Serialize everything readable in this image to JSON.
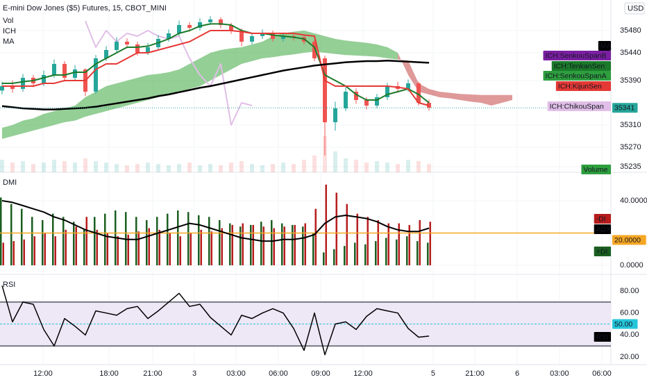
{
  "chart_data": [
    {
      "type": "candlestick",
      "title": "E-mini Dow Jones ($5) Futures, 15, CBOT_MINI",
      "indicators": [
        "Vol",
        "ICH",
        "MA"
      ],
      "currency": "USD",
      "up_color": "#26a69a",
      "down_color": "#ef5350",
      "open": [
        35372,
        35380,
        35375,
        35395,
        35385,
        35400,
        35420,
        35395,
        35410,
        35370,
        35430,
        35445,
        35460,
        35455,
        35440,
        35450,
        35465,
        35475,
        35490,
        35485,
        35495,
        35500,
        35490,
        35480,
        35460,
        35470,
        35475,
        35465,
        35470,
        35468,
        35460,
        35430,
        35315,
        35340,
        35370,
        35355,
        35345,
        35360,
        35380,
        35375,
        35385,
        35350
      ],
      "high": [
        35388,
        35390,
        35402,
        35400,
        35408,
        35428,
        35425,
        35418,
        35412,
        35436,
        35452,
        35468,
        35466,
        35460,
        35458,
        35472,
        35482,
        35498,
        35495,
        35502,
        35506,
        35504,
        35494,
        35484,
        35476,
        35482,
        35480,
        35476,
        35476,
        35472,
        35464,
        35435,
        35352,
        35378,
        35376,
        35360,
        35366,
        35386,
        35388,
        35392,
        35388,
        35356
      ],
      "low": [
        35365,
        35368,
        35370,
        35378,
        35380,
        35395,
        35388,
        35390,
        35362,
        35366,
        35425,
        35440,
        35448,
        35435,
        35436,
        35446,
        35460,
        35470,
        35478,
        35480,
        35490,
        35484,
        35474,
        35452,
        35455,
        35465,
        35460,
        35460,
        35462,
        35455,
        35425,
        35255,
        35300,
        35335,
        35348,
        35338,
        35340,
        35355,
        35368,
        35370,
        35345,
        35336
      ],
      "close": [
        35380,
        35375,
        35395,
        35385,
        35400,
        35420,
        35395,
        35410,
        35370,
        35430,
        35445,
        35460,
        35455,
        35440,
        35450,
        35465,
        35475,
        35490,
        35485,
        35495,
        35500,
        35490,
        35480,
        35460,
        35470,
        35475,
        35465,
        35470,
        35468,
        35460,
        35430,
        35315,
        35340,
        35370,
        35355,
        35345,
        35360,
        35380,
        35375,
        35385,
        35350,
        35341
      ],
      "last_price": 35341,
      "last_price_color": "#26a69a",
      "series": [
        {
          "name": "MA",
          "color": "#000000",
          "values": [
            35344,
            35342,
            35340,
            35339,
            35338,
            35338,
            35339,
            35340,
            35341,
            35343,
            35346,
            35349,
            35352,
            35355,
            35358,
            35362,
            35365,
            35369,
            35373,
            35377,
            35380,
            35384,
            35388,
            35392,
            35396,
            35400,
            35404,
            35408,
            35411,
            35414,
            35417,
            35419,
            35421,
            35423,
            35424,
            35425,
            35425,
            35426,
            35425,
            35424,
            35423,
            35422
          ]
        },
        {
          "name": "ICH:SenkouSpanB",
          "color": "#7b1fa2",
          "values": [
            35285,
            35290,
            35295,
            35300,
            35305,
            35310,
            35315,
            35318,
            35325,
            35330,
            35335,
            35340,
            35345,
            35350,
            35355,
            35360,
            35365,
            35370,
            35375,
            35380,
            35390,
            35400,
            35410,
            35420,
            35425,
            35430,
            35432,
            35435,
            35437,
            35440,
            35442,
            35440,
            35438,
            35436,
            35435,
            35434,
            35433,
            35430,
            35428,
            35426,
            35385,
            35375,
            35370,
            35368,
            35366,
            35365,
            35364,
            35364,
            35364,
            35364
          ]
        },
        {
          "name": "ICH:TenkanSen",
          "color": "#1b7a2a",
          "values": [
            35385,
            35385,
            35388,
            35390,
            35395,
            35400,
            35400,
            35405,
            35405,
            35420,
            35430,
            35440,
            35450,
            35450,
            35452,
            35458,
            35465,
            35475,
            35480,
            35488,
            35492,
            35492,
            35490,
            35480,
            35475,
            35475,
            35472,
            35470,
            35468,
            35465,
            35450,
            35400,
            35390,
            35380,
            35365,
            35355,
            35355,
            35365,
            35370,
            35375,
            35365,
            35350
          ]
        },
        {
          "name": "ICH:SenkouSpanA",
          "color": "#2e9e3e",
          "values": [
            35305,
            35310,
            35318,
            35322,
            35330,
            35335,
            35340,
            35345,
            35360,
            35370,
            35380,
            35385,
            35390,
            35395,
            35400,
            35402,
            35405,
            35410,
            35420,
            35430,
            35440,
            35445,
            35448,
            35450,
            35455,
            35460,
            35470,
            35475,
            35478,
            35480,
            35475,
            35470,
            35465,
            35462,
            35460,
            35458,
            35455,
            35450,
            35440,
            35400,
            35370,
            35365,
            35360,
            35358,
            35355,
            35352,
            35350,
            35345,
            35350,
            35355
          ]
        },
        {
          "name": "ICH:KijunSen",
          "color": "#e53935",
          "values": [
            35380,
            35380,
            35380,
            35380,
            35385,
            35385,
            35390,
            35390,
            35390,
            35410,
            35420,
            35420,
            35430,
            35440,
            35440,
            35445,
            35450,
            35455,
            35460,
            35470,
            35480,
            35480,
            35480,
            35478,
            35475,
            35475,
            35475,
            35475,
            35475,
            35472,
            35470,
            35390,
            35380,
            35380,
            35380,
            35380,
            35380,
            35380,
            35378,
            35375,
            35350,
            35345
          ]
        },
        {
          "name": "ICH:ChikouSpan",
          "color": "#e1bee7",
          "values": [
            null,
            null,
            null,
            null,
            null,
            null,
            null,
            null,
            35497,
            35450,
            35480,
            35460,
            35475,
            35470,
            35480,
            35470,
            35465,
            35470,
            35430,
            35400,
            35380,
            35420,
            35310,
            35350,
            35345,
            null,
            null,
            null,
            null,
            null,
            null,
            null,
            null,
            null,
            null,
            null,
            null,
            null,
            null,
            null,
            null,
            null
          ]
        }
      ],
      "cloud_colors": {
        "up": "rgba(76,175,80,0.6)",
        "down": "rgba(183,28,28,0.45)"
      },
      "volume": {
        "name": "Volume",
        "color": "#2e9e3e",
        "lim": [
          0,
          3000
        ],
        "values": [
          900,
          700,
          800,
          600,
          700,
          900,
          800,
          700,
          1000,
          800,
          700,
          600,
          500,
          600,
          700,
          600,
          500,
          600,
          700,
          500,
          600,
          500,
          700,
          800,
          600,
          500,
          600,
          700,
          600,
          900,
          1200,
          2600,
          1500,
          1000,
          900,
          700,
          800,
          700,
          600,
          900,
          800,
          600
        ]
      },
      "ylim": [
        35225,
        35535
      ],
      "yticks": [
        35480,
        35440,
        35390,
        35310,
        35270,
        35235
      ],
      "xlim": [
        -0.2,
        58.47
      ],
      "xticks": [
        {
          "value": 3.93,
          "label": "12:00"
        },
        {
          "value": 10.27,
          "label": "18:00"
        },
        {
          "value": 14.47,
          "label": "21:00"
        },
        {
          "value": 18.47,
          "label": "3"
        },
        {
          "value": 22.47,
          "label": "03:00"
        },
        {
          "value": 26.53,
          "label": "06:00"
        },
        {
          "value": 30.6,
          "label": "09:00"
        },
        {
          "value": 34.67,
          "label": "12:00"
        },
        {
          "value": 41.4,
          "label": "5"
        },
        {
          "value": 45.4,
          "label": "21:00"
        },
        {
          "value": 49.47,
          "label": "6"
        },
        {
          "value": 53.53,
          "label": "03:00"
        },
        {
          "value": 57.6,
          "label": "06:00"
        }
      ]
    },
    {
      "type": "bar",
      "title": "DMI",
      "series": [
        {
          "name": "+DI",
          "color": "#1b5e20",
          "values": [
            42,
            38,
            35,
            30,
            28,
            32,
            30,
            27,
            22,
            30,
            32,
            34,
            33,
            30,
            28,
            30,
            32,
            34,
            33,
            31,
            30,
            28,
            26,
            24,
            25,
            27,
            28,
            26,
            25,
            24,
            20,
            8,
            10,
            12,
            14,
            13,
            15,
            17,
            16,
            18,
            15,
            14
          ]
        },
        {
          "name": "-DI",
          "color": "#b71c1c",
          "values": [
            14,
            15,
            16,
            18,
            20,
            18,
            22,
            24,
            30,
            22,
            20,
            18,
            19,
            21,
            23,
            22,
            20,
            18,
            20,
            22,
            21,
            23,
            25,
            26,
            25,
            24,
            23,
            24,
            25,
            26,
            35,
            50,
            45,
            38,
            32,
            30,
            28,
            26,
            26,
            25,
            28,
            27
          ]
        },
        {
          "name": "ADX",
          "color": "#000000",
          "type": "line",
          "values": [
            40,
            39,
            37,
            35,
            33,
            30,
            28,
            25,
            22,
            20,
            18,
            17,
            16,
            16,
            18,
            20,
            22,
            24,
            26,
            25,
            23,
            21,
            19,
            17,
            16,
            15,
            15,
            16,
            16,
            17,
            19,
            26,
            30,
            31,
            30,
            29,
            27,
            24,
            22,
            21,
            21,
            23
          ]
        }
      ],
      "level": {
        "value": 20,
        "label": "20.0000",
        "color": "#f5a623"
      },
      "ylim": [
        -5.6,
        56.8
      ],
      "yticks": [
        {
          "value": 40,
          "label": "40.0000"
        },
        {
          "value": 0,
          "label": "0.0000"
        }
      ]
    },
    {
      "type": "line",
      "title": "RSI",
      "series": [
        {
          "name": "RSI",
          "color": "#000000",
          "values": [
            85,
            52,
            70,
            68,
            45,
            30,
            55,
            48,
            40,
            62,
            60,
            58,
            64,
            66,
            55,
            62,
            70,
            78,
            66,
            68,
            56,
            48,
            40,
            58,
            55,
            60,
            64,
            60,
            46,
            26,
            60,
            22,
            50,
            52,
            45,
            57,
            64,
            62,
            60,
            46,
            38,
            39
          ]
        }
      ],
      "bands": [
        70,
        30
      ],
      "band_color": "#ede7f6",
      "midline": {
        "value": 50,
        "label": "50.00",
        "color": "#26c6da"
      },
      "ylim": [
        13,
        94
      ],
      "yticks": [
        {
          "value": 80,
          "label": "80.00"
        },
        {
          "value": 60,
          "label": "60.00"
        },
        {
          "value": 40,
          "label": "40.00"
        },
        {
          "value": 20,
          "label": "20.00"
        }
      ]
    }
  ]
}
